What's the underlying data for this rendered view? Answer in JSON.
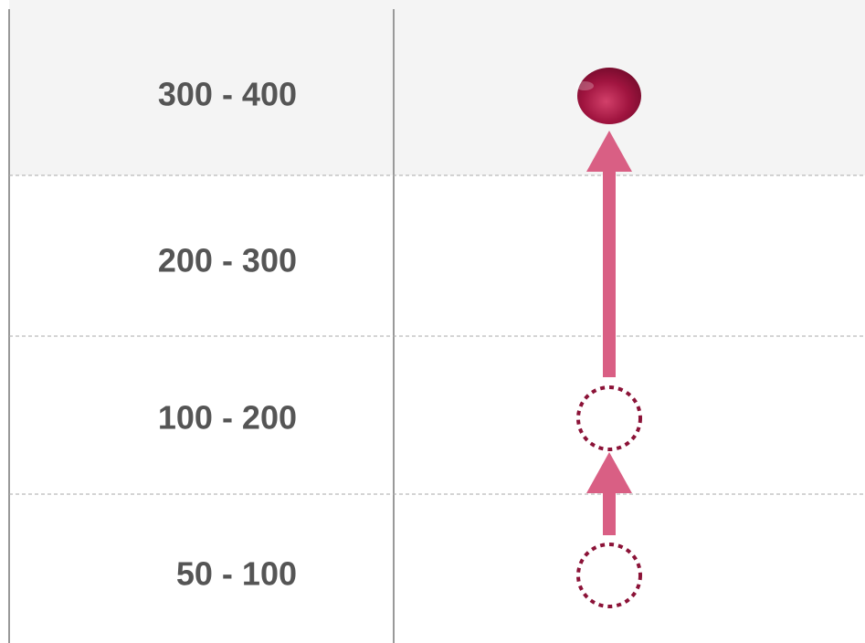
{
  "rows": [
    {
      "label": "300 - 400"
    },
    {
      "label": "200 - 300"
    },
    {
      "label": "100 - 200"
    },
    {
      "label": "50 - 100"
    }
  ]
}
